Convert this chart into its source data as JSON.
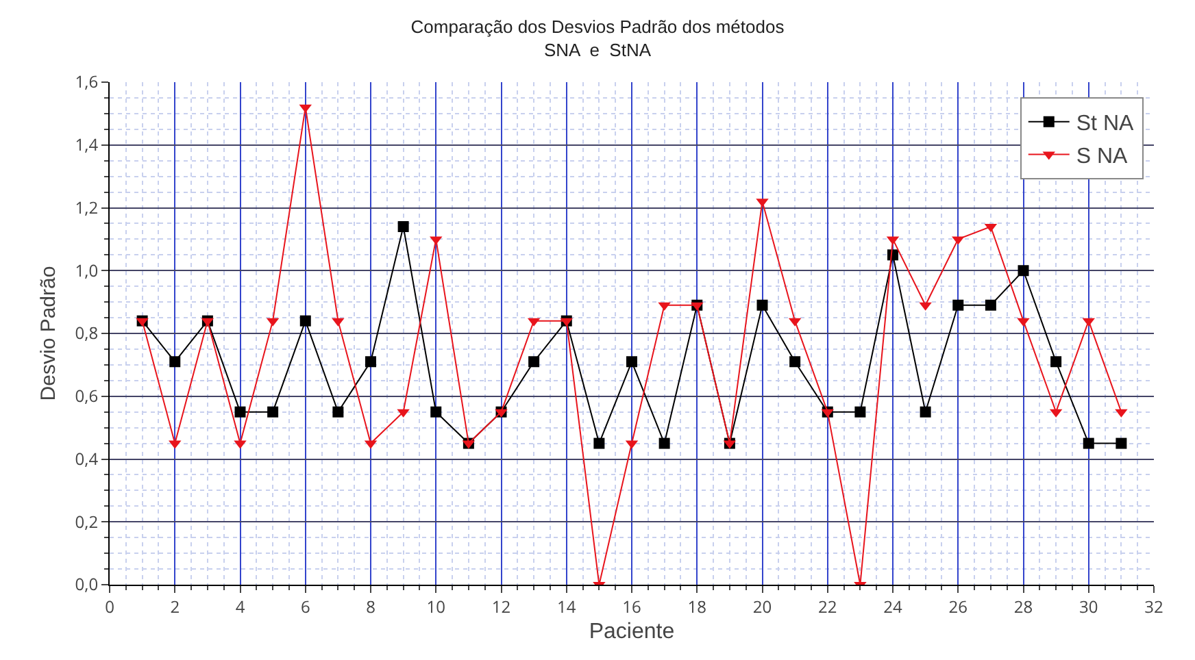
{
  "chart_data": {
    "type": "line",
    "title": "Comparação dos Desvios Padrão dos métodos\nSNA  e  StNA",
    "xlabel": "Paciente",
    "ylabel": "Desvio Padrão",
    "x": [
      1,
      2,
      3,
      4,
      5,
      6,
      7,
      8,
      9,
      10,
      11,
      12,
      13,
      14,
      15,
      16,
      17,
      18,
      19,
      20,
      21,
      22,
      23,
      24,
      25,
      26,
      27,
      28,
      29,
      30,
      31
    ],
    "series": [
      {
        "name": "St NA",
        "color": "#000000",
        "marker": "square",
        "values": [
          0.84,
          0.71,
          0.84,
          0.55,
          0.55,
          0.84,
          0.55,
          0.71,
          1.14,
          0.55,
          0.45,
          0.55,
          0.71,
          0.84,
          0.45,
          0.71,
          0.45,
          0.89,
          0.45,
          0.89,
          0.71,
          0.55,
          0.55,
          1.05,
          0.55,
          0.89,
          0.89,
          1.0,
          0.71,
          0.45,
          0.45
        ]
      },
      {
        "name": "S NA",
        "color": "#e8141c",
        "marker": "triangle",
        "values": [
          0.84,
          0.45,
          0.84,
          0.45,
          0.84,
          1.52,
          0.84,
          0.45,
          0.55,
          1.1,
          0.45,
          0.55,
          0.84,
          0.84,
          0,
          0.45,
          0.89,
          0.89,
          0.45,
          1.22,
          0.84,
          0.55,
          0,
          1.1,
          0.89,
          1.1,
          1.14,
          0.84,
          0.55,
          0.84,
          0.55
        ]
      }
    ],
    "xlim": [
      0,
      32
    ],
    "xticks": [
      0,
      2,
      4,
      6,
      8,
      10,
      12,
      14,
      16,
      18,
      20,
      22,
      24,
      26,
      28,
      30,
      32
    ],
    "ylim": [
      0,
      1.6
    ],
    "yticks": [
      {
        "value": 0,
        "label": "0,0"
      },
      {
        "value": 0.2,
        "label": "0,2"
      },
      {
        "value": 0.4,
        "label": "0,4"
      },
      {
        "value": 0.6,
        "label": "0,6"
      },
      {
        "value": 0.8,
        "label": "0,8"
      },
      {
        "value": 1.0,
        "label": "1,0"
      },
      {
        "value": 1.2,
        "label": "1,2"
      },
      {
        "value": 1.4,
        "label": "1,4"
      },
      {
        "value": 1.6,
        "label": "1,6"
      }
    ],
    "grid": true,
    "legend": "top right",
    "line_style": "solid"
  }
}
